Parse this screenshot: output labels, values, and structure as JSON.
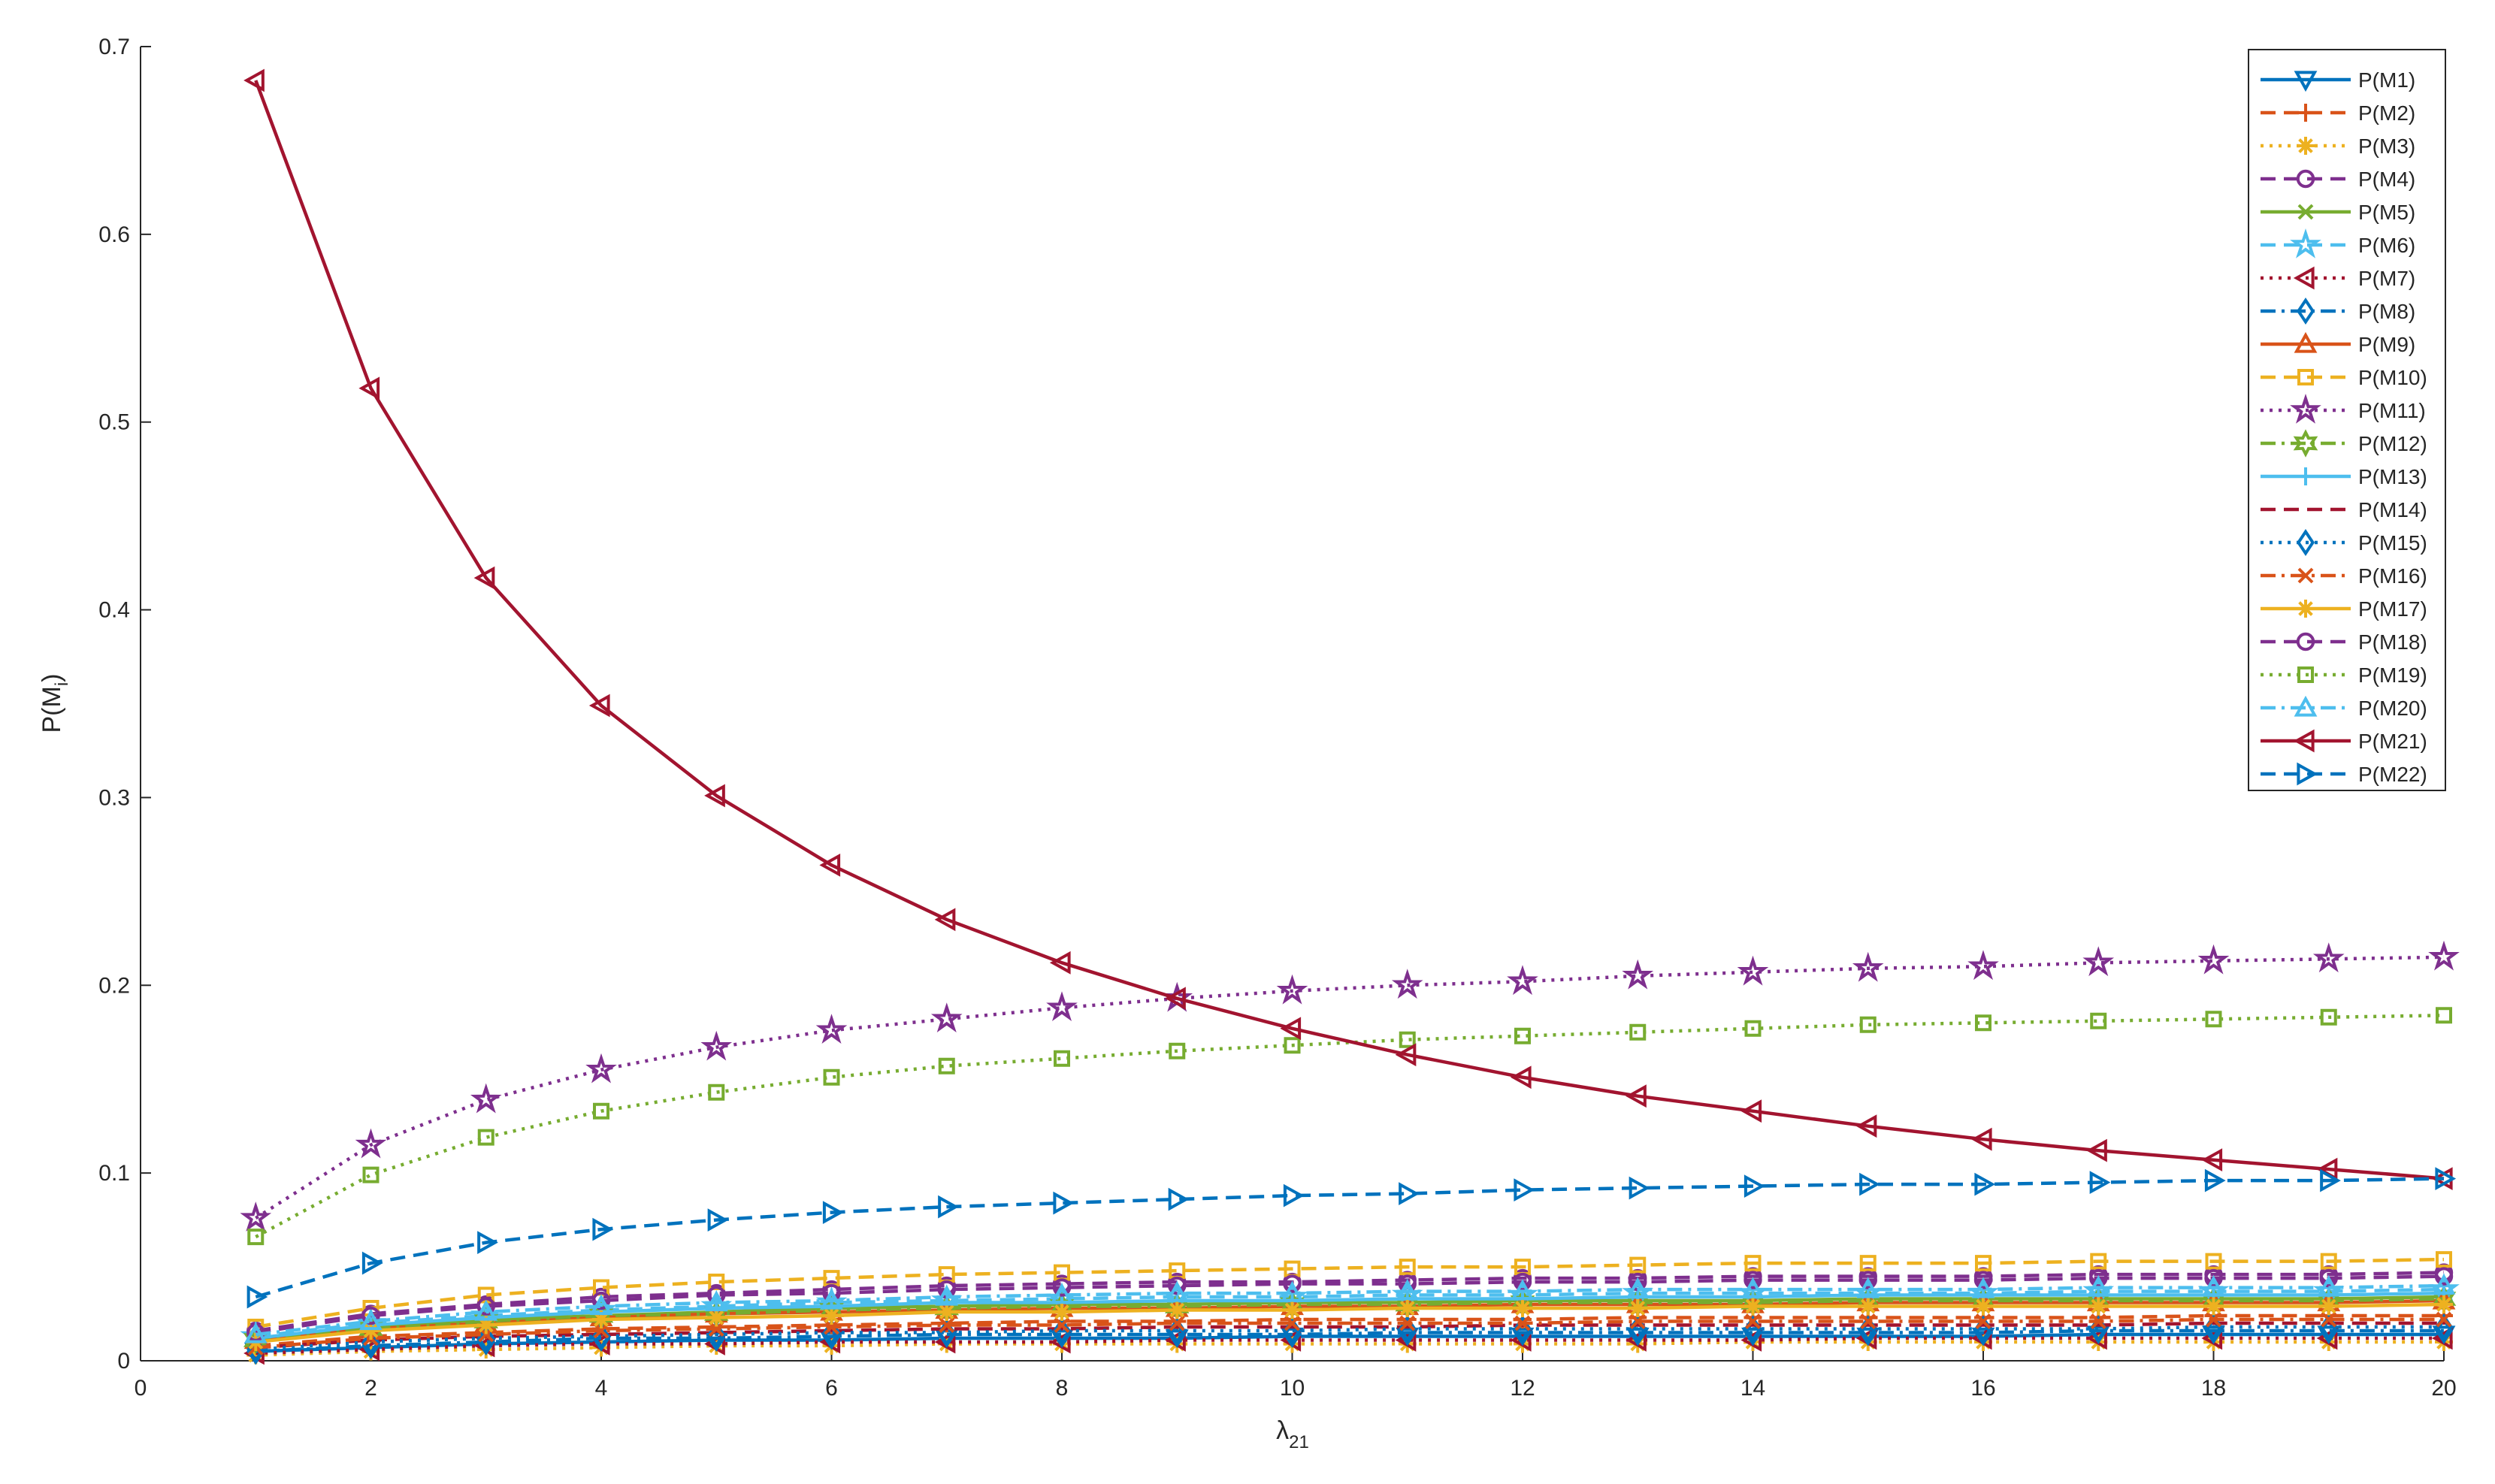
{
  "chart_data": {
    "type": "line",
    "xlabel": [
      "λ",
      "21"
    ],
    "ylabel": [
      "P(M",
      "i",
      ")"
    ],
    "x": [
      1,
      2,
      3,
      4,
      5,
      6,
      7,
      8,
      9,
      10,
      11,
      12,
      13,
      14,
      15,
      16,
      17,
      18,
      19,
      20
    ],
    "xlim": [
      0,
      20
    ],
    "ylim": [
      0,
      0.7
    ],
    "xticks": [
      0,
      2,
      4,
      6,
      8,
      10,
      12,
      14,
      16,
      18,
      20
    ],
    "yticks": [
      0,
      0.1,
      0.2,
      0.3,
      0.4,
      0.5,
      0.6,
      0.7
    ],
    "legend": "top-right",
    "series": [
      {
        "name": "P(M1)",
        "color": "#0072BD",
        "dash": "solid",
        "marker": "down-triangle",
        "values": [
          0.005,
          0.007,
          0.009,
          0.01,
          0.011,
          0.011,
          0.012,
          0.012,
          0.012,
          0.013,
          0.013,
          0.013,
          0.013,
          0.013,
          0.013,
          0.013,
          0.014,
          0.014,
          0.014,
          0.014
        ]
      },
      {
        "name": "P(M2)",
        "color": "#D95319",
        "dash": "dashed",
        "marker": "plus",
        "values": [
          0.008,
          0.013,
          0.015,
          0.017,
          0.018,
          0.019,
          0.02,
          0.021,
          0.021,
          0.022,
          0.022,
          0.022,
          0.023,
          0.023,
          0.023,
          0.023,
          0.023,
          0.024,
          0.024,
          0.024
        ]
      },
      {
        "name": "P(M3)",
        "color": "#EDB120",
        "dash": "dotted",
        "marker": "asterisk",
        "values": [
          0.003,
          0.005,
          0.006,
          0.007,
          0.008,
          0.008,
          0.009,
          0.009,
          0.009,
          0.009,
          0.009,
          0.009,
          0.009,
          0.01,
          0.01,
          0.01,
          0.01,
          0.01,
          0.01,
          0.01
        ]
      },
      {
        "name": "P(M4)",
        "color": "#7E2F8E",
        "dash": "dashed",
        "marker": "circle",
        "values": [
          0.016,
          0.025,
          0.03,
          0.034,
          0.036,
          0.038,
          0.04,
          0.041,
          0.042,
          0.042,
          0.043,
          0.044,
          0.044,
          0.045,
          0.045,
          0.045,
          0.046,
          0.046,
          0.046,
          0.047
        ]
      },
      {
        "name": "P(M5)",
        "color": "#77AC30",
        "dash": "solid",
        "marker": "x",
        "values": [
          0.012,
          0.018,
          0.022,
          0.024,
          0.026,
          0.028,
          0.029,
          0.03,
          0.03,
          0.031,
          0.031,
          0.032,
          0.032,
          0.032,
          0.033,
          0.033,
          0.033,
          0.033,
          0.033,
          0.034
        ]
      },
      {
        "name": "P(M6)",
        "color": "#4DBEEE",
        "dash": "dashed",
        "marker": "pentagram",
        "values": [
          0.013,
          0.02,
          0.024,
          0.027,
          0.029,
          0.031,
          0.032,
          0.033,
          0.034,
          0.034,
          0.035,
          0.035,
          0.036,
          0.036,
          0.036,
          0.036,
          0.037,
          0.037,
          0.037,
          0.038
        ]
      },
      {
        "name": "P(M7)",
        "color": "#A2142F",
        "dash": "dotted",
        "marker": "left-triangle",
        "values": [
          0.004,
          0.006,
          0.008,
          0.009,
          0.009,
          0.01,
          0.01,
          0.01,
          0.011,
          0.011,
          0.011,
          0.011,
          0.011,
          0.011,
          0.012,
          0.012,
          0.012,
          0.012,
          0.012,
          0.012
        ]
      },
      {
        "name": "P(M8)",
        "color": "#0072BD",
        "dash": "dashdot",
        "marker": "diamond",
        "values": [
          0.005,
          0.008,
          0.01,
          0.012,
          0.012,
          0.013,
          0.014,
          0.014,
          0.014,
          0.014,
          0.015,
          0.015,
          0.015,
          0.015,
          0.015,
          0.015,
          0.016,
          0.016,
          0.016,
          0.016
        ]
      },
      {
        "name": "P(M9)",
        "color": "#D95319",
        "dash": "solid",
        "marker": "up-triangle",
        "values": [
          0.011,
          0.017,
          0.02,
          0.023,
          0.025,
          0.026,
          0.027,
          0.028,
          0.028,
          0.029,
          0.029,
          0.03,
          0.03,
          0.03,
          0.031,
          0.031,
          0.031,
          0.031,
          0.031,
          0.032
        ]
      },
      {
        "name": "P(M10)",
        "color": "#EDB120",
        "dash": "dashed",
        "marker": "square",
        "values": [
          0.018,
          0.028,
          0.035,
          0.039,
          0.042,
          0.044,
          0.046,
          0.047,
          0.048,
          0.049,
          0.05,
          0.05,
          0.051,
          0.052,
          0.052,
          0.052,
          0.053,
          0.053,
          0.053,
          0.054
        ]
      },
      {
        "name": "P(M11)",
        "color": "#7E2F8E",
        "dash": "dotted",
        "marker": "pentagram",
        "values": [
          0.076,
          0.115,
          0.139,
          0.155,
          0.167,
          0.176,
          0.182,
          0.188,
          0.193,
          0.197,
          0.2,
          0.202,
          0.205,
          0.207,
          0.209,
          0.21,
          0.212,
          0.213,
          0.214,
          0.215
        ]
      },
      {
        "name": "P(M12)",
        "color": "#77AC30",
        "dash": "dashdot",
        "marker": "hexagram",
        "values": [
          0.011,
          0.017,
          0.021,
          0.024,
          0.025,
          0.027,
          0.028,
          0.029,
          0.029,
          0.03,
          0.03,
          0.031,
          0.031,
          0.031,
          0.032,
          0.032,
          0.032,
          0.032,
          0.032,
          0.033
        ]
      },
      {
        "name": "P(M13)",
        "color": "#4DBEEE",
        "dash": "solid",
        "marker": "plus",
        "values": [
          0.012,
          0.019,
          0.023,
          0.026,
          0.028,
          0.029,
          0.031,
          0.031,
          0.032,
          0.032,
          0.033,
          0.033,
          0.034,
          0.034,
          0.035,
          0.035,
          0.035,
          0.035,
          0.035,
          0.036
        ]
      },
      {
        "name": "P(M14)",
        "color": "#A2142F",
        "dash": "dashed",
        "marker": "none",
        "values": [
          0.007,
          0.011,
          0.013,
          0.014,
          0.015,
          0.016,
          0.017,
          0.017,
          0.018,
          0.018,
          0.018,
          0.019,
          0.019,
          0.019,
          0.019,
          0.019,
          0.019,
          0.02,
          0.02,
          0.02
        ]
      },
      {
        "name": "P(M15)",
        "color": "#0072BD",
        "dash": "dotted",
        "marker": "diamond",
        "values": [
          0.006,
          0.01,
          0.012,
          0.013,
          0.014,
          0.015,
          0.015,
          0.016,
          0.016,
          0.016,
          0.017,
          0.017,
          0.017,
          0.017,
          0.017,
          0.017,
          0.017,
          0.018,
          0.018,
          0.018
        ]
      },
      {
        "name": "P(M16)",
        "color": "#D95319",
        "dash": "dashdot",
        "marker": "x",
        "values": [
          0.007,
          0.012,
          0.014,
          0.016,
          0.017,
          0.018,
          0.019,
          0.019,
          0.02,
          0.02,
          0.02,
          0.02,
          0.021,
          0.021,
          0.021,
          0.021,
          0.021,
          0.022,
          0.022,
          0.022
        ]
      },
      {
        "name": "P(M17)",
        "color": "#EDB120",
        "dash": "solid",
        "marker": "asterisk",
        "values": [
          0.01,
          0.016,
          0.019,
          0.022,
          0.023,
          0.024,
          0.026,
          0.026,
          0.027,
          0.027,
          0.028,
          0.028,
          0.028,
          0.029,
          0.029,
          0.029,
          0.029,
          0.029,
          0.029,
          0.03
        ]
      },
      {
        "name": "P(M18)",
        "color": "#7E2F8E",
        "dash": "dashed",
        "marker": "circle",
        "values": [
          0.015,
          0.024,
          0.029,
          0.032,
          0.035,
          0.036,
          0.038,
          0.039,
          0.04,
          0.041,
          0.041,
          0.042,
          0.042,
          0.043,
          0.043,
          0.043,
          0.044,
          0.044,
          0.044,
          0.045
        ]
      },
      {
        "name": "P(M19)",
        "color": "#77AC30",
        "dash": "dotted",
        "marker": "square",
        "values": [
          0.066,
          0.099,
          0.119,
          0.133,
          0.143,
          0.151,
          0.157,
          0.161,
          0.165,
          0.168,
          0.171,
          0.173,
          0.175,
          0.177,
          0.179,
          0.18,
          0.181,
          0.182,
          0.183,
          0.184
        ]
      },
      {
        "name": "P(M20)",
        "color": "#4DBEEE",
        "dash": "dashdot",
        "marker": "up-triangle",
        "values": [
          0.014,
          0.021,
          0.026,
          0.029,
          0.031,
          0.032,
          0.034,
          0.035,
          0.036,
          0.036,
          0.037,
          0.037,
          0.038,
          0.038,
          0.038,
          0.038,
          0.039,
          0.039,
          0.039,
          0.04
        ]
      },
      {
        "name": "P(M21)",
        "color": "#A2142F",
        "dash": "solid",
        "marker": "left-triangle",
        "values": [
          0.682,
          0.518,
          0.417,
          0.349,
          0.301,
          0.264,
          0.235,
          0.212,
          0.193,
          0.177,
          0.163,
          0.151,
          0.141,
          0.133,
          0.125,
          0.118,
          0.112,
          0.107,
          0.102,
          0.097
        ]
      },
      {
        "name": "P(M22)",
        "color": "#0072BD",
        "dash": "dashed",
        "marker": "right-triangle",
        "values": [
          0.034,
          0.052,
          0.063,
          0.07,
          0.075,
          0.079,
          0.082,
          0.084,
          0.086,
          0.088,
          0.089,
          0.091,
          0.092,
          0.093,
          0.094,
          0.094,
          0.095,
          0.096,
          0.096,
          0.097
        ]
      }
    ]
  }
}
